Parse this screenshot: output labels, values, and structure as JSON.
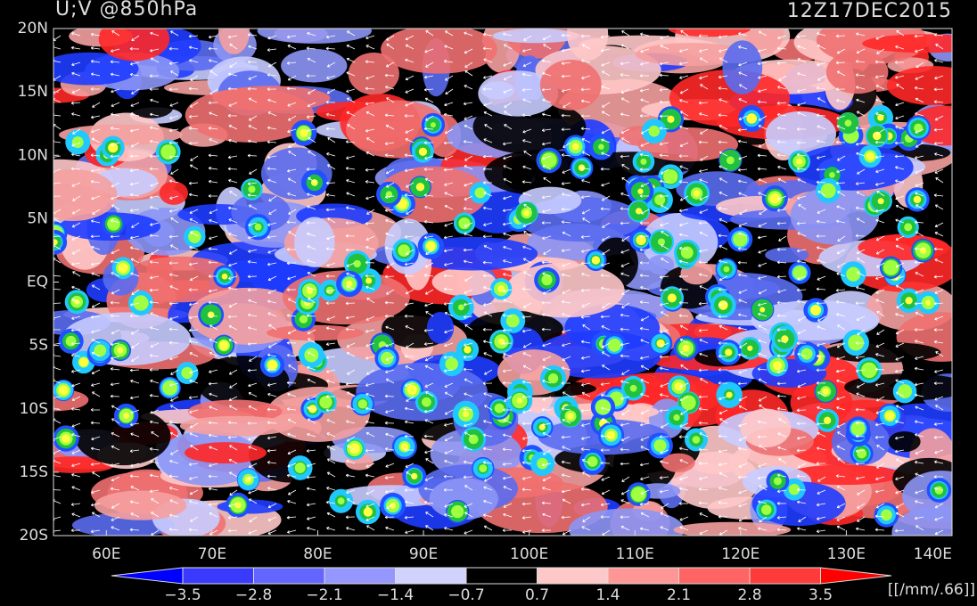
{
  "header": {
    "title": "U;V @850hPa",
    "time": "12Z17DEC2015"
  },
  "lat_labels": [
    "20N",
    "15N",
    "10N",
    "5N",
    "EQ",
    "5S",
    "10S",
    "15S",
    "20S"
  ],
  "lon_labels": [
    "60E",
    "70E",
    "80E",
    "90E",
    "100E",
    "110E",
    "120E",
    "130E",
    "140E"
  ],
  "colorbar": {
    "labels": [
      "−3.5",
      "−2.8",
      "−2.1",
      "−1.4",
      "−0.7",
      "0.7",
      "1.4",
      "2.1",
      "2.8",
      "3.5"
    ],
    "unit": "[[/mm/.66]]"
  }
}
